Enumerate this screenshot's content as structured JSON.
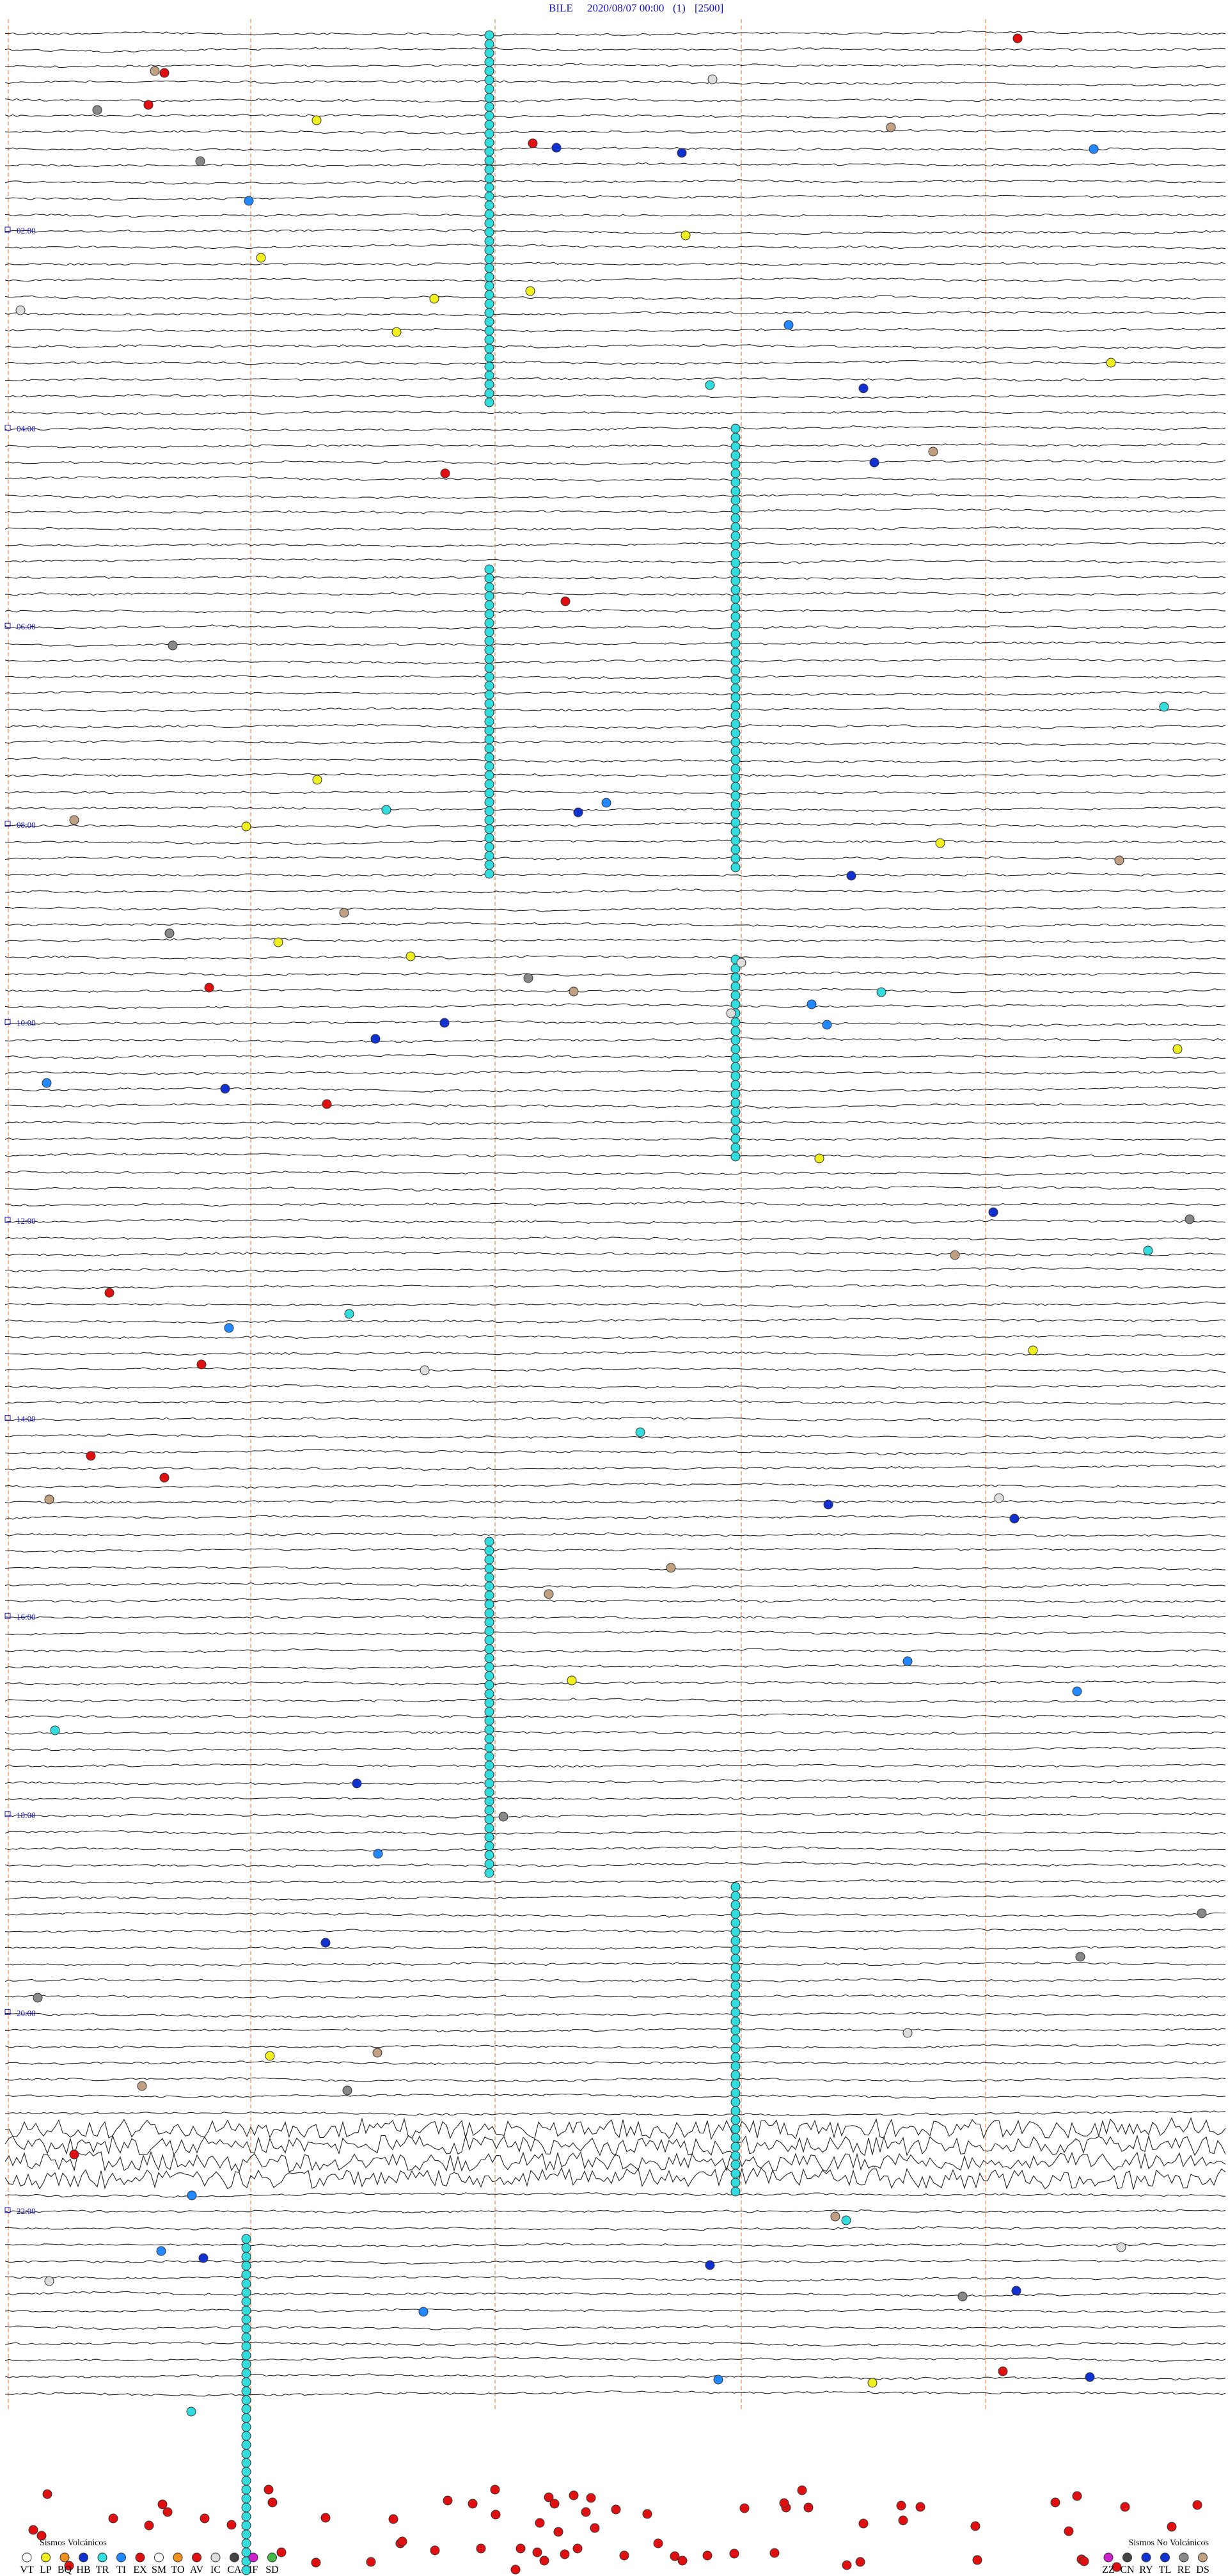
{
  "header": {
    "station": "BILE",
    "datetime": "2020/08/07 00:00",
    "channel": "(1)",
    "scale": "[2500]"
  },
  "hour_labels": [
    "02:00",
    "04:00",
    "06:00",
    "08:00",
    "10:00",
    "12:00",
    "14:00",
    "16:00",
    "18:00",
    "20:00",
    "22:00"
  ],
  "legend": {
    "volcanic": {
      "title": "Sismos Volcánicos",
      "codes": [
        "VT",
        "LP",
        "BQ",
        "HB",
        "TR",
        "TI",
        "EX",
        "SM",
        "TO",
        "AV",
        "IC",
        "CA",
        "IF",
        "SD"
      ]
    },
    "non_volcanic": {
      "title": "Sismos No Volcánicos",
      "codes": [
        "ZZ",
        "CN",
        "RY",
        "TL",
        "RE",
        "DS"
      ]
    }
  }
}
